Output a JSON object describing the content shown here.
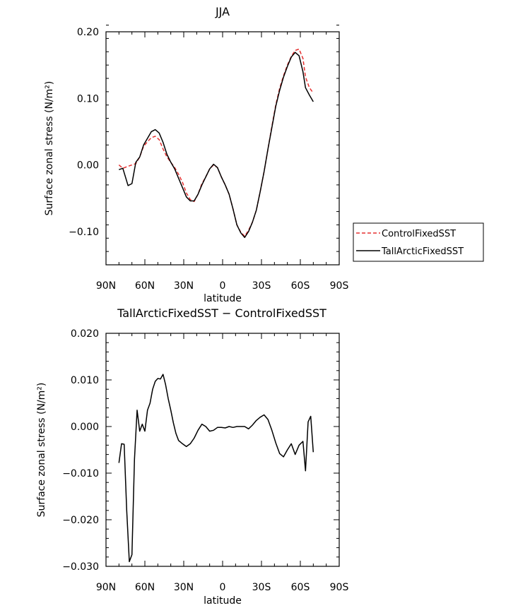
{
  "chart_data": [
    {
      "type": "line",
      "title": "JJA",
      "xlabel": "latitude",
      "ylabel": "Surface zonal stress (N/m²)",
      "xlim": [
        90,
        -90
      ],
      "ylim": [
        -0.15,
        0.2
      ],
      "x_ticks": [
        "90N",
        "60N",
        "30N",
        "0",
        "30S",
        "60S",
        "90S"
      ],
      "y_ticks": [
        "0.20",
        "0.10",
        "0.00",
        "−0.10"
      ],
      "legend_position": "right-outside",
      "series": [
        {
          "name": "ControlFixedSST",
          "color": "#e53030",
          "dash": true,
          "x": [
            80,
            77,
            73,
            70,
            67,
            64,
            61,
            58,
            55,
            52,
            49,
            46,
            43,
            40,
            37,
            34,
            31,
            28,
            25,
            22,
            19,
            16,
            13,
            10,
            7,
            4,
            1,
            -2,
            -5,
            -8,
            -11,
            -14,
            -17,
            -20,
            -23,
            -26,
            -29,
            -32,
            -35,
            -38,
            -41,
            -44,
            -47,
            -50,
            -53,
            -56,
            -59,
            -62,
            -64,
            -67,
            -70
          ],
          "y": [
            0.0,
            -0.005,
            -0.002,
            0.0,
            0.002,
            0.012,
            0.028,
            0.035,
            0.041,
            0.043,
            0.038,
            0.024,
            0.012,
            0.004,
            -0.004,
            -0.014,
            -0.026,
            -0.042,
            -0.052,
            -0.055,
            -0.044,
            -0.028,
            -0.018,
            -0.006,
            0.0,
            -0.004,
            -0.018,
            -0.03,
            -0.044,
            -0.066,
            -0.09,
            -0.101,
            -0.107,
            -0.098,
            -0.086,
            -0.068,
            -0.04,
            -0.01,
            0.024,
            0.058,
            0.09,
            0.115,
            0.134,
            0.15,
            0.163,
            0.172,
            0.174,
            0.16,
            0.132,
            0.116,
            0.108
          ]
        },
        {
          "name": "TallArcticFixedSST",
          "color": "#000000",
          "dash": false,
          "x": [
            80,
            77,
            73,
            70,
            67,
            64,
            61,
            58,
            55,
            52,
            49,
            46,
            43,
            40,
            37,
            34,
            31,
            28,
            25,
            22,
            19,
            16,
            13,
            10,
            7,
            4,
            1,
            -2,
            -5,
            -8,
            -11,
            -14,
            -17,
            -20,
            -23,
            -26,
            -29,
            -32,
            -35,
            -38,
            -41,
            -44,
            -47,
            -50,
            -53,
            -56,
            -59,
            -62,
            -64,
            -67,
            -70
          ],
          "y": [
            -0.007,
            -0.005,
            -0.031,
            -0.028,
            0.004,
            0.012,
            0.03,
            0.04,
            0.05,
            0.053,
            0.048,
            0.034,
            0.016,
            0.004,
            -0.006,
            -0.02,
            -0.034,
            -0.048,
            -0.054,
            -0.054,
            -0.044,
            -0.03,
            -0.018,
            -0.006,
            0.001,
            -0.004,
            -0.018,
            -0.03,
            -0.044,
            -0.066,
            -0.09,
            -0.102,
            -0.109,
            -0.1,
            -0.086,
            -0.068,
            -0.04,
            -0.01,
            0.024,
            0.056,
            0.088,
            0.112,
            0.132,
            0.148,
            0.162,
            0.169,
            0.164,
            0.14,
            0.116,
            0.105,
            0.095
          ]
        }
      ]
    },
    {
      "type": "line",
      "title": "TallArcticFixedSST − ControlFixedSST",
      "xlabel": "latitude",
      "ylabel": "Surface zonal stress (N/m²)",
      "xlim": [
        90,
        -90
      ],
      "ylim": [
        -0.03,
        0.02
      ],
      "x_ticks": [
        "90N",
        "60N",
        "30N",
        "0",
        "30S",
        "60S",
        "90S"
      ],
      "y_ticks": [
        "0.020",
        "0.010",
        "0.000",
        "−0.010",
        "−0.020",
        "−0.030"
      ],
      "series": [
        {
          "color": "#000000",
          "dash": false,
          "x": [
            80,
            78,
            76,
            74,
            72,
            70,
            68,
            66,
            64,
            62,
            60,
            58,
            56,
            54,
            52,
            50,
            48,
            46,
            44,
            42,
            40,
            38,
            36,
            34,
            31,
            28,
            25,
            22,
            19,
            16,
            13,
            10,
            7,
            4,
            1,
            -2,
            -5,
            -8,
            -11,
            -14,
            -17,
            -20,
            -23,
            -26,
            -29,
            -32,
            -35,
            -38,
            -41,
            -44,
            -47,
            -50,
            -53,
            -56,
            -59,
            -62,
            -64,
            -66,
            -68,
            -70
          ],
          "y": [
            -0.0078,
            -0.0037,
            -0.0038,
            -0.018,
            -0.029,
            -0.0275,
            -0.007,
            0.0035,
            -0.001,
            0.0005,
            -0.001,
            0.0035,
            0.005,
            0.008,
            0.0097,
            0.0103,
            0.0102,
            0.0112,
            0.009,
            0.006,
            0.0035,
            0.0008,
            -0.0015,
            -0.003,
            -0.0037,
            -0.0043,
            -0.0037,
            -0.0025,
            -0.0008,
            0.0005,
            0.0,
            -0.001,
            -0.0008,
            -0.0002,
            -0.0002,
            -0.0003,
            0.0,
            -0.0002,
            0.0,
            0.0,
            0.0,
            -0.0005,
            0.0003,
            0.0013,
            0.002,
            0.0025,
            0.0015,
            -0.0008,
            -0.0035,
            -0.0058,
            -0.0065,
            -0.005,
            -0.0037,
            -0.006,
            -0.004,
            -0.0032,
            -0.0095,
            0.001,
            0.0022,
            -0.0055
          ]
        }
      ]
    }
  ]
}
